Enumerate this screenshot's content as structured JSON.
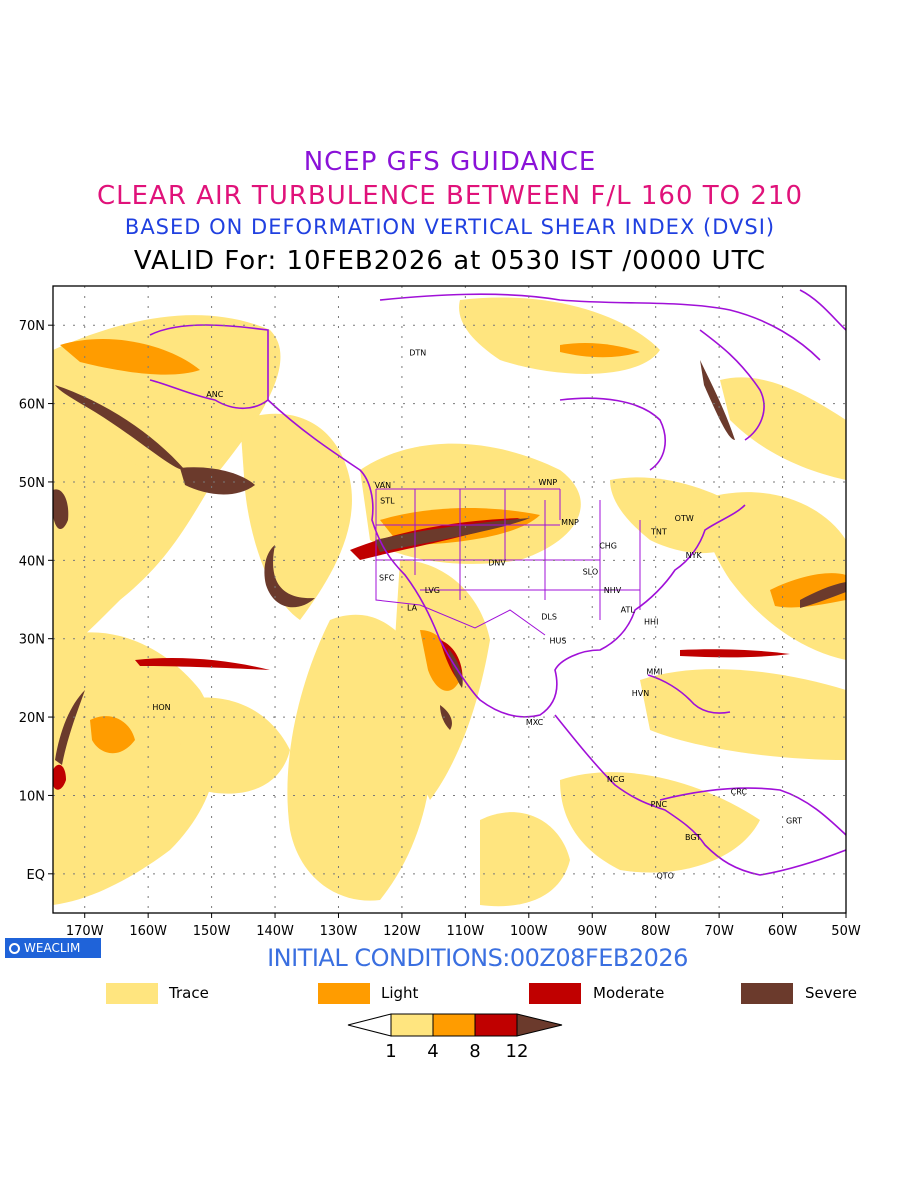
{
  "titles": {
    "line1": "NCEP GFS GUIDANCE",
    "line2": "CLEAR AIR TURBULENCE BETWEEN F/L 160 TO 210",
    "line3": "BASED ON DEFORMATION VERTICAL SHEAR INDEX (DVSI)",
    "line4": "VALID For: 10FEB2026 at 0530 IST /0000 UTC"
  },
  "colors": {
    "line1": "#8a12d8",
    "line2": "#e0127a",
    "line3": "#2040e0",
    "line4": "#000000",
    "coast": "#a010d8",
    "trace": "#ffe57f",
    "light": "#ff9c00",
    "moderate": "#c00000",
    "severe": "#6b3a2c"
  },
  "axes": {
    "lat_labels": [
      "70N",
      "60N",
      "50N",
      "40N",
      "30N",
      "20N",
      "10N",
      "EQ"
    ],
    "lon_labels": [
      "170W",
      "160W",
      "150W",
      "140W",
      "130W",
      "120W",
      "110W",
      "100W",
      "90W",
      "80W",
      "70W",
      "60W",
      "50W"
    ],
    "lat_range": [
      -5,
      75
    ],
    "lon_range": [
      -175,
      -50
    ]
  },
  "stations": [
    {
      "code": "DTN",
      "lon": -117.5,
      "lat": 66.5
    },
    {
      "code": "ANC",
      "lon": -149.5,
      "lat": 61.2
    },
    {
      "code": "VAN",
      "lon": -123.0,
      "lat": 49.6
    },
    {
      "code": "STL",
      "lon": -122.3,
      "lat": 47.6
    },
    {
      "code": "WNP",
      "lon": -97.0,
      "lat": 50.0
    },
    {
      "code": "OTW",
      "lon": -75.5,
      "lat": 45.4
    },
    {
      "code": "TNT",
      "lon": -79.5,
      "lat": 43.7
    },
    {
      "code": "MNP",
      "lon": -93.5,
      "lat": 44.9
    },
    {
      "code": "CHG",
      "lon": -87.5,
      "lat": 41.9
    },
    {
      "code": "NYK",
      "lon": -74.0,
      "lat": 40.7
    },
    {
      "code": "DNV",
      "lon": -105.0,
      "lat": 39.7
    },
    {
      "code": "SFC",
      "lon": -122.4,
      "lat": 37.8
    },
    {
      "code": "SLO",
      "lon": -90.3,
      "lat": 38.6
    },
    {
      "code": "LVG",
      "lon": -115.2,
      "lat": 36.2
    },
    {
      "code": "NHV",
      "lon": -86.8,
      "lat": 36.2
    },
    {
      "code": "LA",
      "lon": -118.4,
      "lat": 34.0
    },
    {
      "code": "ATL",
      "lon": -84.4,
      "lat": 33.7
    },
    {
      "code": "DLS",
      "lon": -96.8,
      "lat": 32.8
    },
    {
      "code": "HHI",
      "lon": -80.7,
      "lat": 32.2
    },
    {
      "code": "HUS",
      "lon": -95.4,
      "lat": 29.8
    },
    {
      "code": "MMI",
      "lon": -80.2,
      "lat": 25.8
    },
    {
      "code": "HVN",
      "lon": -82.4,
      "lat": 23.1
    },
    {
      "code": "HON",
      "lon": -157.9,
      "lat": 21.3
    },
    {
      "code": "MXC",
      "lon": -99.1,
      "lat": 19.4
    },
    {
      "code": "NCG",
      "lon": -86.3,
      "lat": 12.1
    },
    {
      "code": "CRC",
      "lon": -66.9,
      "lat": 10.5
    },
    {
      "code": "PNC",
      "lon": -79.5,
      "lat": 8.9
    },
    {
      "code": "GRT",
      "lon": -58.2,
      "lat": 6.8
    },
    {
      "code": "BGT",
      "lon": -74.1,
      "lat": 4.7
    },
    {
      "code": "QTO",
      "lon": -78.5,
      "lat": -0.2
    }
  ],
  "logo": {
    "text": "WEACLIM"
  },
  "initial_conditions": "INITIAL CONDITIONS:00Z08FEB2026",
  "legend": [
    {
      "label": "Trace",
      "color": "#ffe57f"
    },
    {
      "label": "Light",
      "color": "#ff9c00"
    },
    {
      "label": "Moderate",
      "color": "#c00000"
    },
    {
      "label": "Severe",
      "color": "#6b3a2c"
    }
  ],
  "colorbar": {
    "levels": [
      "1",
      "4",
      "8",
      "12"
    ],
    "colors": [
      "#ffffff",
      "#ffe57f",
      "#ff9c00",
      "#c00000",
      "#6b3a2c"
    ]
  }
}
